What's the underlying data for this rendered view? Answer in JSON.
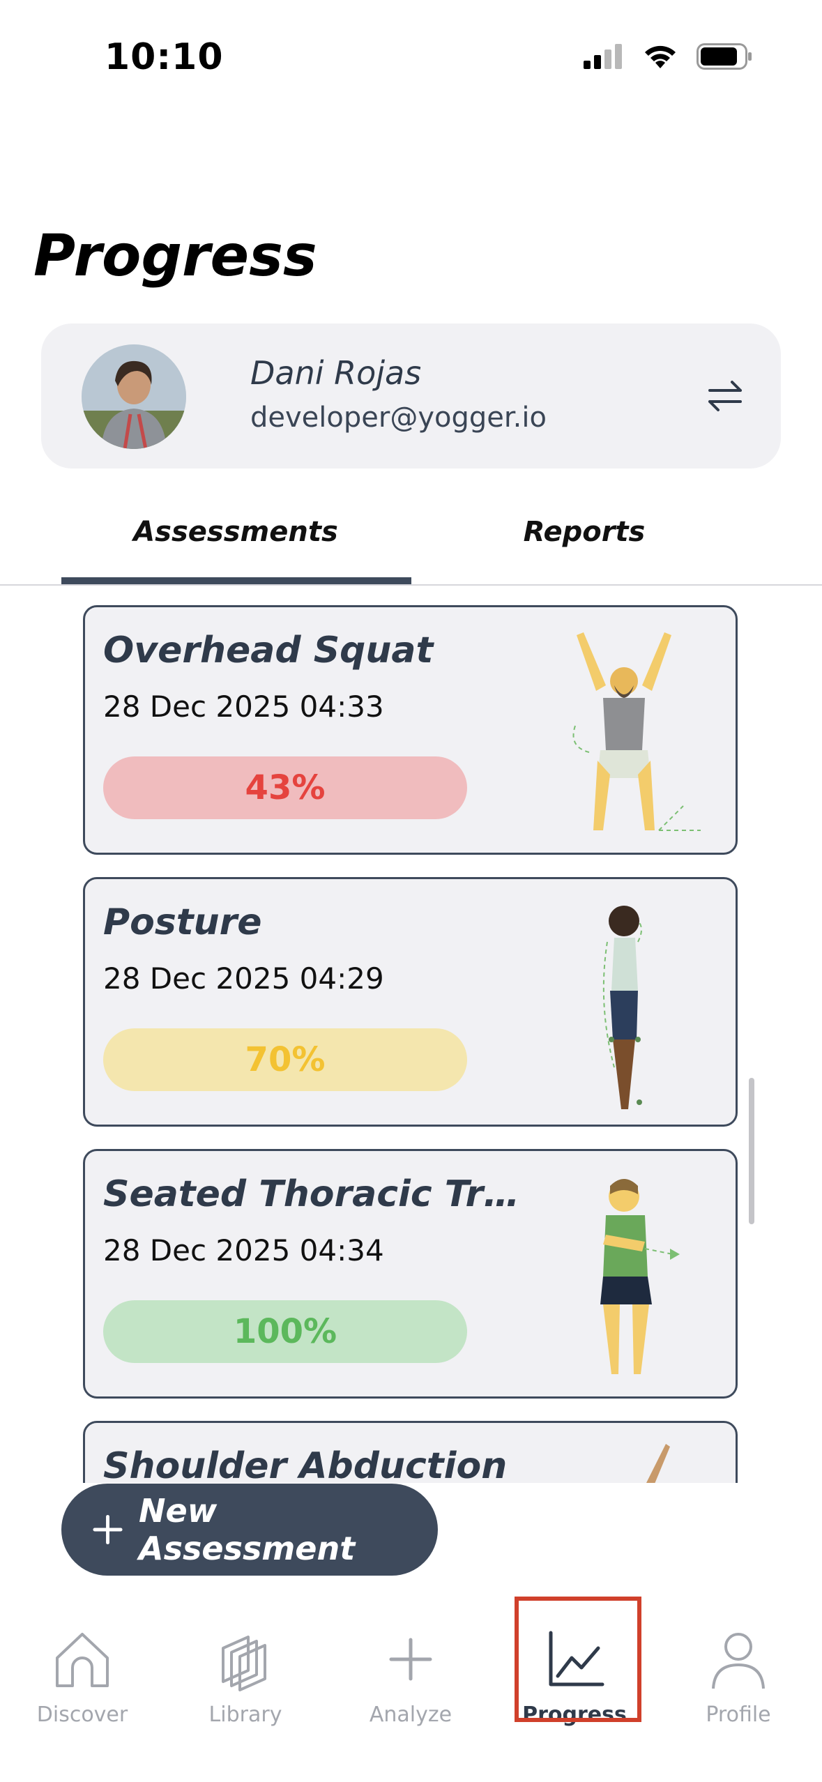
{
  "status_bar": {
    "time": "10:10"
  },
  "page": {
    "title": "Progress"
  },
  "profile": {
    "name": "Dani Rojas",
    "email": "developer@yogger.io"
  },
  "tabs": [
    {
      "label": "Assessments",
      "active": true
    },
    {
      "label": "Reports",
      "active": false
    }
  ],
  "assessments": [
    {
      "title": "Overhead Squat",
      "date": "28 Dec 2025 04:33",
      "score": "43%",
      "score_color": "#e5433e",
      "pill_color": "#f0bcbe",
      "icon": "overhead-squat-figure"
    },
    {
      "title": "Posture",
      "date": "28 Dec 2025 04:29",
      "score": "70%",
      "score_color": "#f3c232",
      "pill_color": "#f4e6ae",
      "icon": "posture-figure"
    },
    {
      "title": "Seated Thoracic Tr…",
      "date": "28 Dec 2025 04:34",
      "score": "100%",
      "score_color": "#5cb85c",
      "pill_color": "#c3e4c6",
      "icon": "thoracic-rotation-figure"
    },
    {
      "title": "Shoulder Abduction",
      "date": "",
      "score": "",
      "icon": "shoulder-abduction-figure"
    }
  ],
  "fab": {
    "label": "New Assessment"
  },
  "bottom_nav": [
    {
      "label": "Discover",
      "icon": "home-icon",
      "active": false
    },
    {
      "label": "Library",
      "icon": "library-icon",
      "active": false
    },
    {
      "label": "Analyze",
      "icon": "plus-icon",
      "active": false
    },
    {
      "label": "Progress",
      "icon": "chart-icon",
      "active": true
    },
    {
      "label": "Profile",
      "icon": "person-icon",
      "active": false
    }
  ]
}
